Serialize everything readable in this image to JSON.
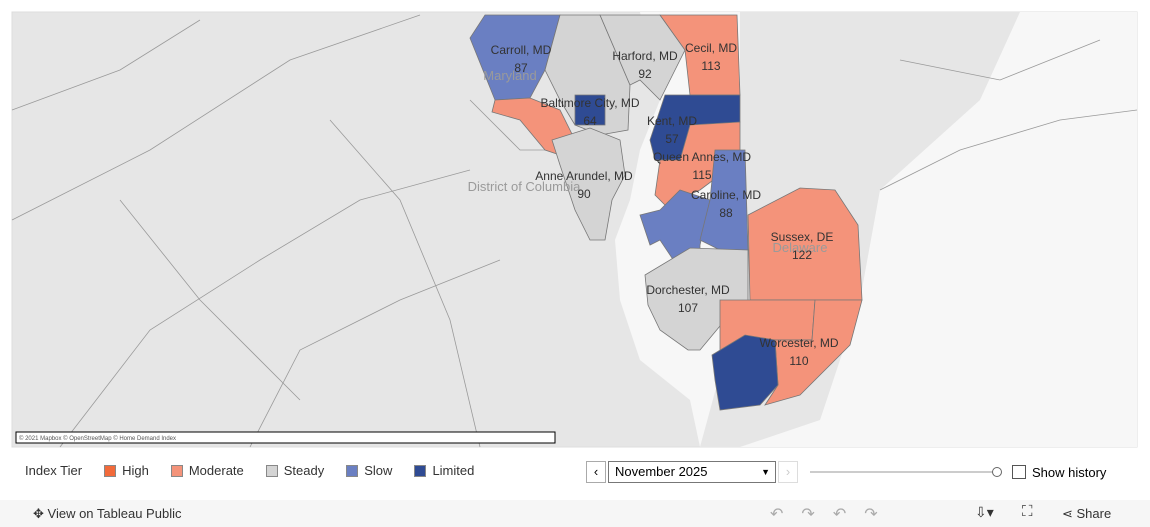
{
  "map": {
    "place_labels": [
      "Maryland",
      "District of Columbia",
      "Delaware"
    ],
    "attribution": "© 2021 Mapbox © OpenStreetMap © Home Demand Index",
    "regions": [
      {
        "name": "Carroll, MD",
        "value": 87,
        "color": "#6a7fc2"
      },
      {
        "name": "Harford, MD",
        "value": 92,
        "color": "#d4d4d4"
      },
      {
        "name": "Cecil, MD",
        "value": 113,
        "color": "#f4937a"
      },
      {
        "name": "Baltimore City, MD",
        "value": 64,
        "color": "#2f4b93"
      },
      {
        "name": "Kent, MD",
        "value": 57,
        "color": "#2f4b93"
      },
      {
        "name": "Queen Annes, MD",
        "value": 115,
        "color": "#f4937a"
      },
      {
        "name": "Anne Arundel, MD",
        "value": 90,
        "color": "#d4d4d4"
      },
      {
        "name": "Caroline, MD",
        "value": 88,
        "color": "#6a7fc2"
      },
      {
        "name": "Sussex, DE",
        "value": 122,
        "color": "#f4937a"
      },
      {
        "name": "Dorchester, MD",
        "value": 107,
        "color": "#d4d4d4"
      },
      {
        "name": "Worcester, MD",
        "value": 110,
        "color": "#f4937a"
      }
    ]
  },
  "legend": {
    "title": "Index Tier",
    "items": [
      {
        "label": "High",
        "color": "#f26a3a"
      },
      {
        "label": "Moderate",
        "color": "#f4937a"
      },
      {
        "label": "Steady",
        "color": "#d4d4d4"
      },
      {
        "label": "Slow",
        "color": "#6a7fc2"
      },
      {
        "label": "Limited",
        "color": "#2f4b93"
      }
    ]
  },
  "controls": {
    "period": "November 2025",
    "show_history": "Show history"
  },
  "toolbar": {
    "view_link": "View on Tableau Public",
    "share": "Share"
  }
}
